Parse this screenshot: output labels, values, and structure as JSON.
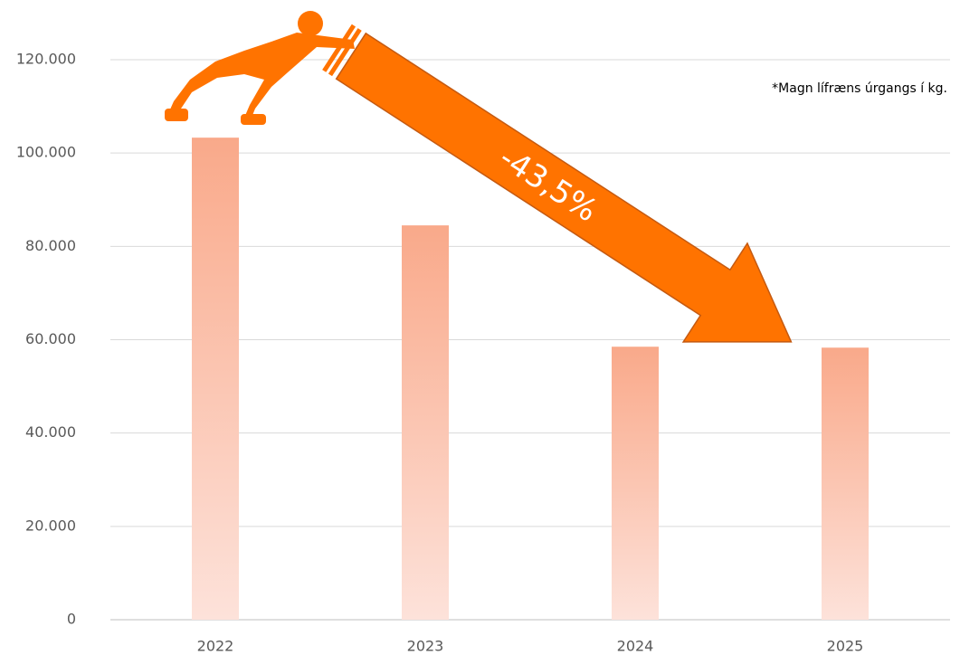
{
  "chart_data": {
    "type": "bar",
    "categories": [
      "2022",
      "2023",
      "2024",
      "2025"
    ],
    "values": [
      103300,
      84500,
      58500,
      58300
    ],
    "ylim": [
      0,
      120000
    ],
    "yticks": [
      0,
      {
        "value": 20000,
        "label": "20.000"
      },
      {
        "value": 40000,
        "label": "40.000"
      },
      {
        "value": 60000,
        "label": "60.000"
      },
      {
        "value": 80000,
        "label": "80.000"
      },
      {
        "value": 100000,
        "label": "100.000"
      },
      {
        "value": 120000,
        "label": "120.000"
      }
    ],
    "grid": true,
    "color": "#f9a98a",
    "annotations": [
      "-43,5%",
      "*Magn lífræns úrgangs í kg."
    ]
  }
}
